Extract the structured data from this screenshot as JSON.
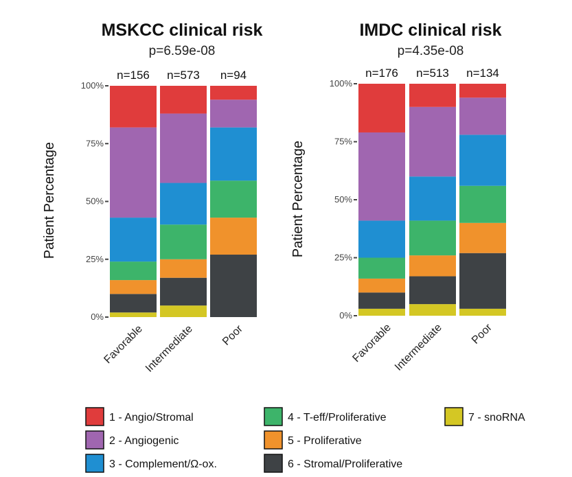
{
  "chart_data": [
    {
      "type": "bar",
      "stacked": true,
      "title": "MSKCC clinical risk",
      "subtitle": "p=6.59e-08",
      "ylabel": "Patient Percentage",
      "xlabel": "",
      "ylim": [
        0,
        100
      ],
      "yticks": [
        "0%",
        "25%",
        "50%",
        "75%",
        "100%"
      ],
      "categories": [
        "Favorable",
        "Intermediate",
        "Poor"
      ],
      "counts": [
        "n=156",
        "n=573",
        "n=94"
      ],
      "series": [
        {
          "name": "7 - snoRNA",
          "values": [
            2,
            5,
            0
          ]
        },
        {
          "name": "6 - Stromal/Proliferative",
          "values": [
            8,
            12,
            27
          ]
        },
        {
          "name": "5 - Proliferative",
          "values": [
            6,
            8,
            16
          ]
        },
        {
          "name": "4 - T-eff/Proliferative",
          "values": [
            8,
            15,
            16
          ]
        },
        {
          "name": "3 - Complement/Ω-ox.",
          "values": [
            19,
            18,
            23
          ]
        },
        {
          "name": "2 - Angiogenic",
          "values": [
            39,
            30,
            12
          ]
        },
        {
          "name": "1 - Angio/Stromal",
          "values": [
            18,
            12,
            6
          ]
        }
      ]
    },
    {
      "type": "bar",
      "stacked": true,
      "title": "IMDC clinical risk",
      "subtitle": "p=4.35e-08",
      "ylabel": "Patient Percentage",
      "xlabel": "",
      "ylim": [
        0,
        100
      ],
      "yticks": [
        "0%",
        "25%",
        "50%",
        "75%",
        "100%"
      ],
      "categories": [
        "Favorable",
        "Intermediate",
        "Poor"
      ],
      "counts": [
        "n=176",
        "n=513",
        "n=134"
      ],
      "series": [
        {
          "name": "7 - snoRNA",
          "values": [
            3,
            5,
            3
          ]
        },
        {
          "name": "6 - Stromal/Proliferative",
          "values": [
            7,
            12,
            24
          ]
        },
        {
          "name": "5 - Proliferative",
          "values": [
            6,
            9,
            13
          ]
        },
        {
          "name": "4 - T-eff/Proliferative",
          "values": [
            9,
            15,
            16
          ]
        },
        {
          "name": "3 - Complement/Ω-ox.",
          "values": [
            16,
            19,
            22
          ]
        },
        {
          "name": "2 - Angiogenic",
          "values": [
            38,
            30,
            16
          ]
        },
        {
          "name": "1 - Angio/Stromal",
          "values": [
            21,
            10,
            6
          ]
        }
      ]
    }
  ],
  "series_colors": {
    "7 - snoRNA": "#d4c724",
    "6 - Stromal/Proliferative": "#3e4245",
    "5 - Proliferative": "#f0922c",
    "4 - T-eff/Proliferative": "#3db46a",
    "3 - Complement/Ω-ox.": "#1f8fd2",
    "2 - Angiogenic": "#a066b0",
    "1 - Angio/Stromal": "#e03c3c"
  },
  "legend": {
    "placement": "bottom",
    "items": [
      {
        "label": "1 - Angio/Stromal",
        "color": "#e03c3c"
      },
      {
        "label": "2 - Angiogenic",
        "color": "#a066b0"
      },
      {
        "label": "3 - Complement/Ω-ox.",
        "color": "#1f8fd2"
      },
      {
        "label": "4 - T-eff/Proliferative",
        "color": "#3db46a"
      },
      {
        "label": "5 - Proliferative",
        "color": "#f0922c"
      },
      {
        "label": "6 - Stromal/Proliferative",
        "color": "#3e4245"
      },
      {
        "label": "7 - snoRNA",
        "color": "#d4c724"
      }
    ]
  }
}
